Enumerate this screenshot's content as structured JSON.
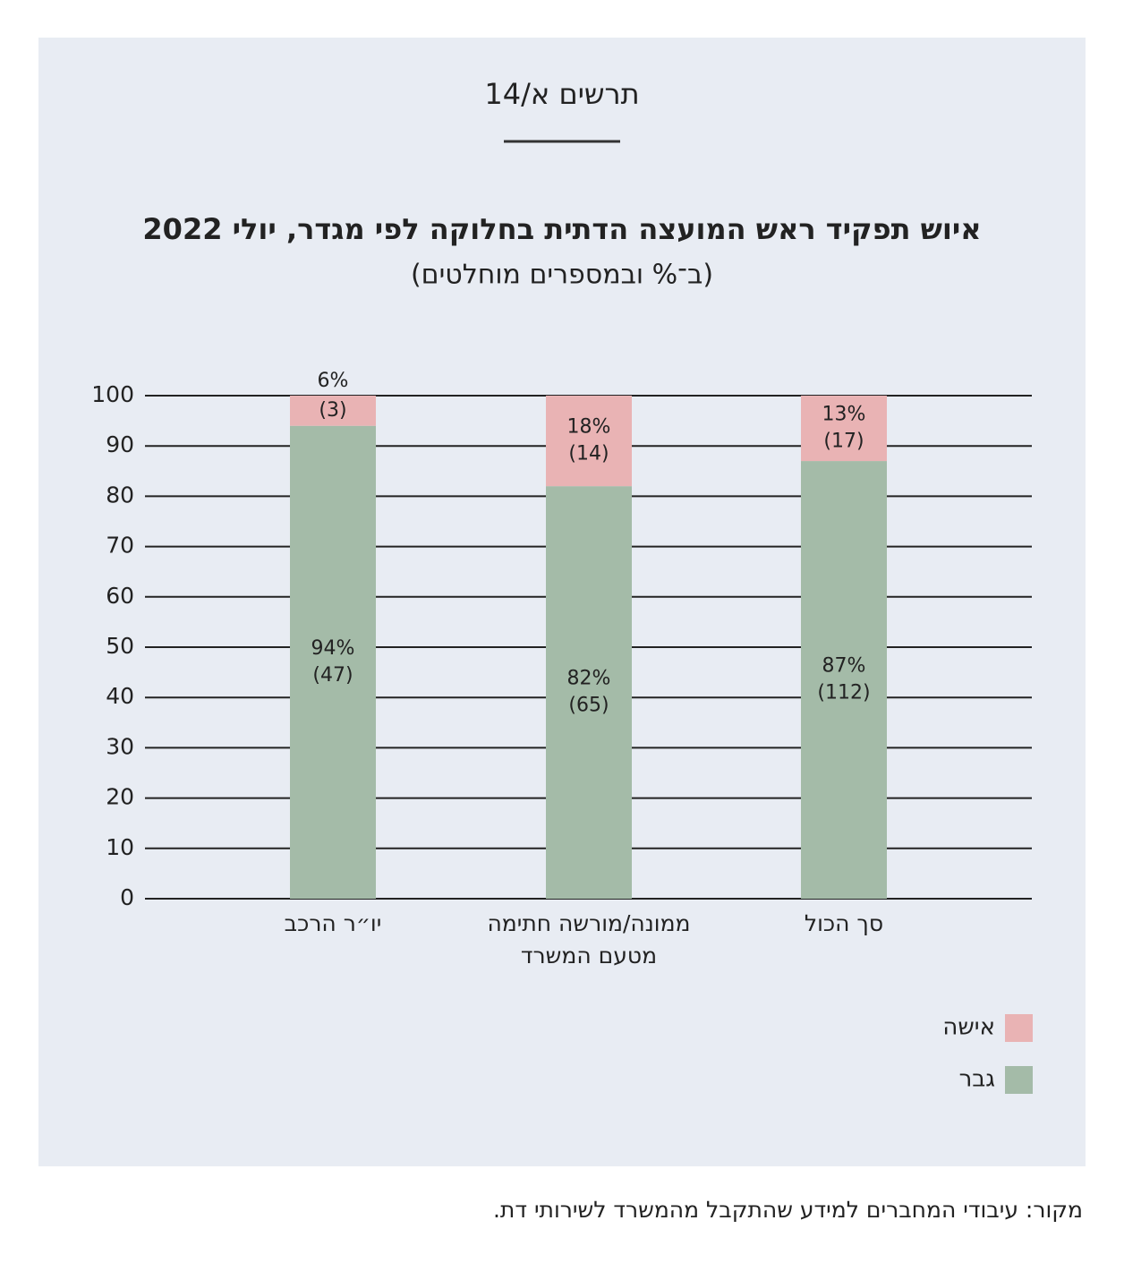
{
  "chart_data": {
    "type": "bar",
    "stacked": true,
    "figure_label": "תרשים א/14",
    "title": "איוש תפקיד ראש המועצה הדתית בחלוקה לפי מגדר, יולי 2022",
    "subtitle": "(ב־% ובמספרים מוחלטים)",
    "categories": [
      "יו״ר הרכב",
      "ממונה/מורשה חתימה מטעם המשרד",
      "סך הכול"
    ],
    "series": [
      {
        "name": "גבר",
        "color": "#a4bba8",
        "values": [
          94,
          82,
          87
        ],
        "value_labels": [
          "94%",
          "82%",
          "87%"
        ],
        "count_labels": [
          "(47)",
          "(65)",
          "(112)"
        ]
      },
      {
        "name": "אישה",
        "color": "#e9b3b4",
        "values": [
          6,
          18,
          13
        ],
        "value_labels": [
          "6%",
          "18%",
          "13%"
        ],
        "count_labels": [
          "(3)",
          "(14)",
          "(17)"
        ]
      }
    ],
    "ylim": [
      0,
      100
    ],
    "yticks": [
      0,
      10,
      20,
      30,
      40,
      50,
      60,
      70,
      80,
      90,
      100
    ],
    "grid": true,
    "legend": "bottom-right",
    "source": "מקור: עיבודי המחברים למידע שהתקבל מהמשרד לשירותי דת."
  }
}
